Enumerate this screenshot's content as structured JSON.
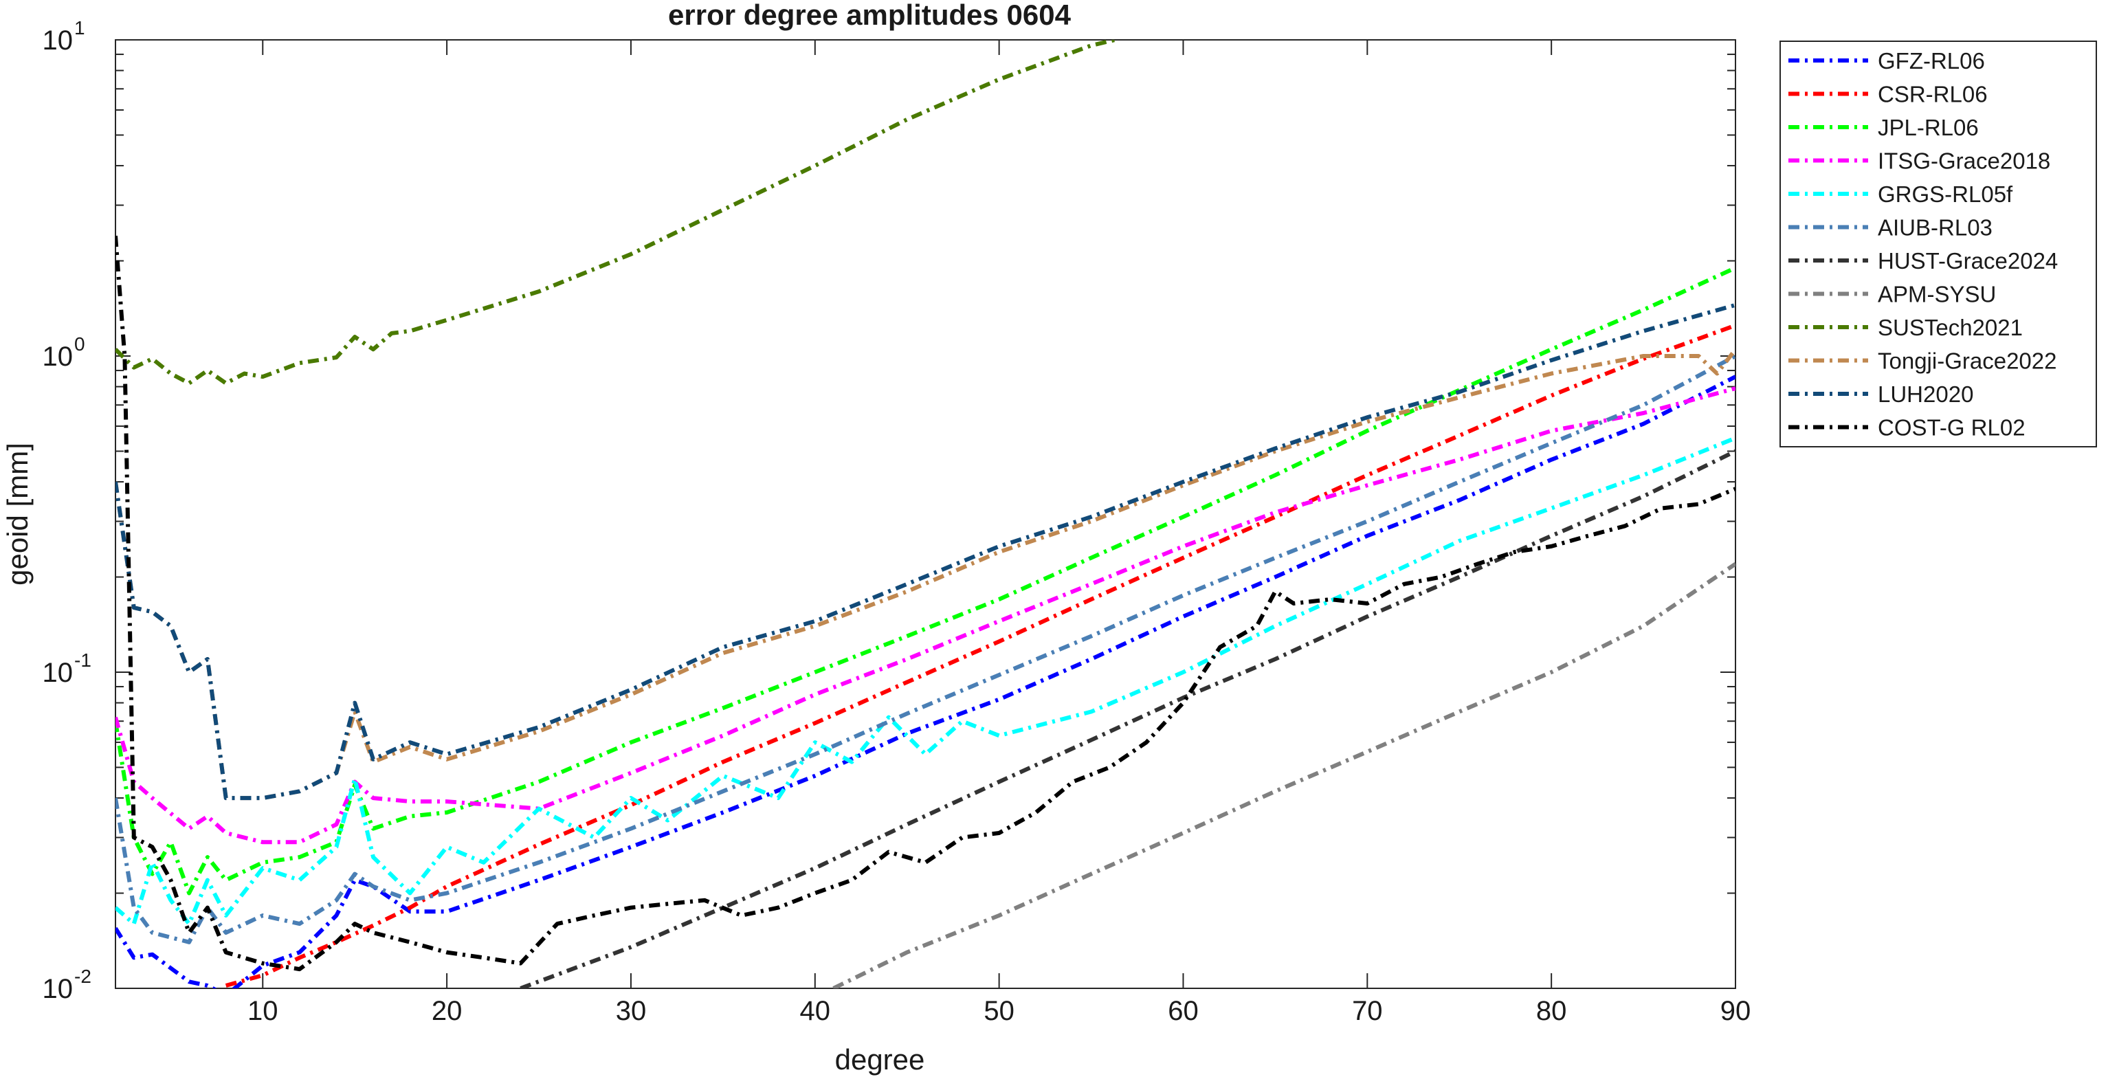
{
  "chart_data": {
    "type": "line",
    "title": "error degree amplitudes 0604",
    "xlabel": "degree",
    "ylabel": "geoid [mm]",
    "xlim": [
      2,
      90
    ],
    "ylim": [
      0.01,
      10
    ],
    "yscale": "log",
    "grid": false,
    "legend_position": "outside-top-right",
    "x_ticks": [
      10,
      20,
      30,
      40,
      50,
      60,
      70,
      80,
      90
    ],
    "x_tick_labels": [
      "10",
      "20",
      "30",
      "40",
      "50",
      "60",
      "70",
      "80",
      "90"
    ],
    "y_ticks": [
      0.01,
      0.1,
      1,
      10
    ],
    "y_tick_labels": [
      {
        "base": "10",
        "exp": "-2"
      },
      {
        "base": "10",
        "exp": "-1"
      },
      {
        "base": "10",
        "exp": "0"
      },
      {
        "base": "10",
        "exp": "1"
      }
    ],
    "series": [
      {
        "name": "GFZ-RL06",
        "color": "#0000ff",
        "x": [
          2,
          3,
          4,
          6,
          7,
          8,
          10,
          12,
          14,
          15,
          16,
          18,
          20,
          25,
          30,
          35,
          40,
          45,
          50,
          55,
          60,
          65,
          70,
          75,
          80,
          85,
          90
        ],
        "y": [
          0.0155,
          0.0125,
          0.0128,
          0.0105,
          0.0102,
          0.0095,
          0.0118,
          0.013,
          0.017,
          0.022,
          0.021,
          0.0175,
          0.0175,
          0.022,
          0.028,
          0.036,
          0.047,
          0.064,
          0.082,
          0.11,
          0.15,
          0.2,
          0.27,
          0.35,
          0.47,
          0.61,
          0.86
        ]
      },
      {
        "name": "CSR-RL06",
        "color": "#ff0000",
        "x": [
          8,
          10,
          12,
          14,
          16,
          18,
          20,
          25,
          30,
          35,
          40,
          45,
          50,
          55,
          60,
          65,
          70,
          75,
          80,
          85,
          90
        ],
        "y": [
          0.0102,
          0.011,
          0.0125,
          0.014,
          0.0158,
          0.018,
          0.021,
          0.0285,
          0.038,
          0.052,
          0.069,
          0.093,
          0.125,
          0.17,
          0.23,
          0.31,
          0.42,
          0.56,
          0.75,
          0.98,
          1.25
        ]
      },
      {
        "name": "JPL-RL06",
        "color": "#00ff00",
        "x": [
          2,
          3,
          4,
          5,
          6,
          7,
          8,
          10,
          12,
          14,
          15,
          16,
          18,
          20,
          25,
          30,
          35,
          40,
          45,
          50,
          55,
          60,
          65,
          70,
          75,
          80,
          85,
          90
        ],
        "y": [
          0.07,
          0.03,
          0.023,
          0.029,
          0.02,
          0.026,
          0.022,
          0.025,
          0.026,
          0.029,
          0.044,
          0.032,
          0.035,
          0.036,
          0.045,
          0.06,
          0.077,
          0.1,
          0.13,
          0.17,
          0.23,
          0.31,
          0.42,
          0.58,
          0.78,
          1.05,
          1.4,
          1.9
        ]
      },
      {
        "name": "ITSG-Grace2018",
        "color": "#ff00ff",
        "x": [
          2,
          3,
          4,
          6,
          7,
          8,
          10,
          12,
          14,
          15,
          16,
          18,
          20,
          25,
          30,
          35,
          40,
          45,
          50,
          55,
          60,
          65,
          70,
          75,
          80,
          85,
          90
        ],
        "y": [
          0.072,
          0.045,
          0.04,
          0.032,
          0.035,
          0.031,
          0.029,
          0.029,
          0.033,
          0.045,
          0.04,
          0.039,
          0.039,
          0.037,
          0.048,
          0.063,
          0.085,
          0.11,
          0.145,
          0.19,
          0.25,
          0.32,
          0.39,
          0.47,
          0.58,
          0.66,
          0.79
        ]
      },
      {
        "name": "GRGS-RL05f",
        "color": "#00ffff",
        "x": [
          2,
          3,
          4,
          5,
          6,
          7,
          8,
          10,
          12,
          14,
          15,
          16,
          18,
          20,
          22,
          25,
          28,
          30,
          32,
          35,
          38,
          40,
          42,
          44,
          46,
          48,
          50,
          55,
          60,
          65,
          70,
          75,
          80,
          85,
          90
        ],
        "y": [
          0.018,
          0.016,
          0.025,
          0.019,
          0.016,
          0.022,
          0.017,
          0.024,
          0.022,
          0.028,
          0.046,
          0.026,
          0.02,
          0.028,
          0.025,
          0.037,
          0.03,
          0.04,
          0.034,
          0.047,
          0.04,
          0.06,
          0.052,
          0.072,
          0.055,
          0.07,
          0.063,
          0.075,
          0.1,
          0.14,
          0.19,
          0.26,
          0.33,
          0.42,
          0.55
        ]
      },
      {
        "name": "AIUB-RL03",
        "color": "#4a7fb5",
        "x": [
          2,
          3,
          4,
          6,
          7,
          8,
          10,
          12,
          14,
          15,
          16,
          18,
          20,
          25,
          30,
          35,
          40,
          45,
          50,
          55,
          60,
          65,
          70,
          75,
          80,
          85,
          90
        ],
        "y": [
          0.04,
          0.018,
          0.015,
          0.014,
          0.018,
          0.015,
          0.017,
          0.016,
          0.019,
          0.023,
          0.021,
          0.019,
          0.02,
          0.025,
          0.032,
          0.042,
          0.055,
          0.074,
          0.098,
          0.13,
          0.175,
          0.23,
          0.3,
          0.4,
          0.53,
          0.7,
          1.0
        ]
      },
      {
        "name": "HUST-Grace2024",
        "color": "#333333",
        "x": [
          24,
          30,
          35,
          40,
          45,
          50,
          55,
          60,
          65,
          70,
          75,
          80,
          85,
          90
        ],
        "y": [
          0.01,
          0.0135,
          0.018,
          0.024,
          0.033,
          0.045,
          0.061,
          0.083,
          0.11,
          0.15,
          0.2,
          0.27,
          0.36,
          0.5
        ]
      },
      {
        "name": "APM-SYSU",
        "color": "#808080",
        "x": [
          41,
          45,
          50,
          55,
          60,
          65,
          70,
          75,
          80,
          85,
          90
        ],
        "y": [
          0.01,
          0.013,
          0.017,
          0.023,
          0.031,
          0.042,
          0.056,
          0.075,
          0.1,
          0.14,
          0.22
        ]
      },
      {
        "name": "SUSTech2021",
        "color": "#4a7a00",
        "x": [
          2,
          3,
          4,
          5,
          6,
          7,
          8,
          9,
          10,
          12,
          14,
          15,
          16,
          17,
          18,
          20,
          25,
          30,
          35,
          40,
          45,
          50,
          55,
          56.3
        ],
        "y": [
          1.05,
          0.92,
          0.98,
          0.88,
          0.82,
          0.9,
          0.82,
          0.88,
          0.86,
          0.95,
          0.99,
          1.15,
          1.05,
          1.18,
          1.2,
          1.3,
          1.6,
          2.1,
          2.9,
          4.0,
          5.6,
          7.5,
          9.6,
          10
        ]
      },
      {
        "name": "Tongji-Grace2022",
        "color": "#c08850",
        "x": [
          2,
          3,
          4,
          5,
          6,
          7,
          8,
          10,
          12,
          14,
          15,
          16,
          18,
          20,
          25,
          30,
          35,
          40,
          45,
          50,
          55,
          60,
          65,
          70,
          75,
          80,
          85,
          88,
          89,
          90
        ],
        "y": [
          0.4,
          0.16,
          0.155,
          0.14,
          0.1,
          0.11,
          0.04,
          0.04,
          0.042,
          0.048,
          0.075,
          0.052,
          0.058,
          0.053,
          0.065,
          0.085,
          0.115,
          0.14,
          0.18,
          0.24,
          0.3,
          0.39,
          0.5,
          0.62,
          0.74,
          0.88,
          1.0,
          1.0,
          0.88,
          1.05
        ]
      },
      {
        "name": "LUH2020",
        "color": "#124a78",
        "x": [
          2,
          3,
          4,
          5,
          6,
          7,
          8,
          10,
          12,
          14,
          15,
          16,
          18,
          20,
          25,
          30,
          35,
          40,
          45,
          50,
          55,
          60,
          65,
          70,
          75,
          80,
          85,
          90
        ],
        "y": [
          0.4,
          0.16,
          0.155,
          0.14,
          0.1,
          0.11,
          0.04,
          0.04,
          0.042,
          0.048,
          0.08,
          0.053,
          0.06,
          0.055,
          0.067,
          0.088,
          0.12,
          0.145,
          0.19,
          0.25,
          0.31,
          0.4,
          0.51,
          0.64,
          0.77,
          0.97,
          1.2,
          1.45
        ]
      },
      {
        "name": "COST-G RL02",
        "color": "#000000",
        "x": [
          2,
          2.5,
          3,
          4,
          5,
          6,
          7,
          8,
          10,
          12,
          14,
          15,
          16,
          18,
          20,
          22,
          24,
          26,
          28,
          30,
          32,
          34,
          36,
          38,
          40,
          42,
          44,
          46,
          48,
          50,
          52,
          54,
          56,
          58,
          60,
          62,
          64,
          65,
          66,
          68,
          70,
          72,
          74,
          76,
          78,
          80,
          82,
          84,
          86,
          88,
          90
        ],
        "y": [
          2.4,
          1.0,
          0.03,
          0.028,
          0.022,
          0.015,
          0.018,
          0.013,
          0.012,
          0.0115,
          0.014,
          0.016,
          0.015,
          0.014,
          0.013,
          0.0125,
          0.012,
          0.016,
          0.017,
          0.018,
          0.0185,
          0.019,
          0.017,
          0.018,
          0.02,
          0.022,
          0.027,
          0.025,
          0.03,
          0.031,
          0.036,
          0.045,
          0.05,
          0.06,
          0.08,
          0.12,
          0.14,
          0.18,
          0.165,
          0.17,
          0.165,
          0.19,
          0.2,
          0.22,
          0.24,
          0.25,
          0.27,
          0.29,
          0.33,
          0.34,
          0.38
        ]
      }
    ]
  }
}
